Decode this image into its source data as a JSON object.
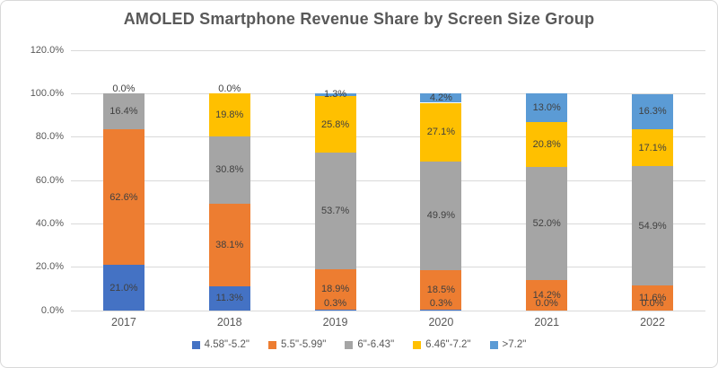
{
  "chart_data": {
    "type": "bar",
    "stacked": true,
    "title": "AMOLED Smartphone Revenue Share by Screen Size Group",
    "categories": [
      "2017",
      "2018",
      "2019",
      "2020",
      "2021",
      "2022"
    ],
    "series": [
      {
        "name": "4.58\"-5.2\"",
        "color": "#4472C4",
        "values": [
          21.0,
          11.3,
          0.3,
          0.3,
          0.0,
          0.0
        ]
      },
      {
        "name": "5.5\"-5.99\"",
        "color": "#ED7D31",
        "values": [
          62.6,
          38.1,
          18.9,
          18.5,
          14.2,
          11.6
        ]
      },
      {
        "name": "6\"-6.43\"",
        "color": "#A5A5A5",
        "values": [
          16.4,
          30.8,
          53.7,
          49.9,
          52.0,
          54.9
        ]
      },
      {
        "name": "6.46\"-7.2\"",
        "color": "#FFC000",
        "values": [
          0.0,
          19.8,
          25.8,
          27.1,
          20.8,
          17.1
        ]
      },
      {
        "name": ">7.2\"",
        "color": "#5B9BD5",
        "values": [
          0.0,
          0.0,
          1.3,
          4.2,
          13.0,
          16.3
        ]
      }
    ],
    "xlabel": "",
    "ylabel": "",
    "ylim": [
      0,
      120
    ],
    "yticks": [
      0,
      20,
      40,
      60,
      80,
      100,
      120
    ],
    "ytick_suffix": "%",
    "grid": true,
    "legend_position": "bottom",
    "data_labels": true
  },
  "colors": {
    "background": "#FFFFFF",
    "border": "#D9D9D9",
    "gridline": "#D9D9D9",
    "title_text": "#595959",
    "axis_text": "#595959",
    "label_text": "#404040"
  }
}
